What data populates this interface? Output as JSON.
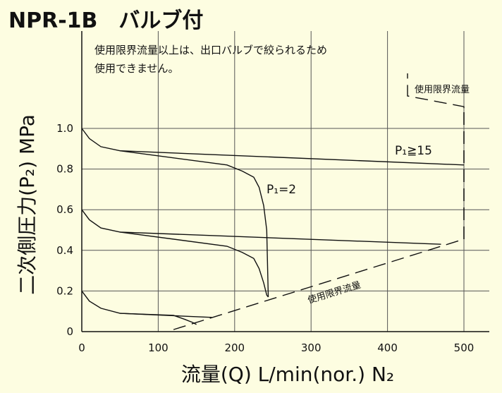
{
  "header": {
    "title": "NPR-1B　バルブ付"
  },
  "note": {
    "line1": "使用限界流量以上は、出口バルブで絞られるため",
    "line2": "使用できません。"
  },
  "chart_data": {
    "type": "line",
    "title": "NPR-1B　バルブ付",
    "xlabel": "流量(Q) L/min(nor.) N₂",
    "ylabel": "二次側圧力(P₂) MPa",
    "xlim": [
      0,
      500
    ],
    "ylim": [
      0,
      1.0
    ],
    "x_ticks": [
      "0",
      "100",
      "200",
      "300",
      "400",
      "500"
    ],
    "y_ticks": [
      "0",
      "0.2",
      "0.4",
      "0.6",
      "0.8",
      "1.0"
    ],
    "grid": true,
    "annotations": {
      "p1_high": "P₁≧15",
      "p1_low": "P₁=2",
      "limit_top": "使用限界流量",
      "limit_diag": "使用限界流量"
    },
    "series": [
      {
        "x": [
          0,
          10,
          25,
          50,
          500
        ],
        "y": [
          1.0,
          0.95,
          0.91,
          0.89,
          0.82
        ]
      },
      {
        "x": [
          50,
          190,
          210,
          225,
          232,
          238,
          242,
          244
        ],
        "y": [
          0.89,
          0.82,
          0.79,
          0.76,
          0.71,
          0.62,
          0.5,
          0.17
        ]
      },
      {
        "x": [
          0,
          10,
          25,
          50,
          470
        ],
        "y": [
          0.6,
          0.55,
          0.51,
          0.49,
          0.43
        ]
      },
      {
        "x": [
          50,
          190,
          210,
          225,
          232,
          238,
          242,
          244
        ],
        "y": [
          0.49,
          0.42,
          0.39,
          0.36,
          0.31,
          0.24,
          0.18,
          0.17
        ]
      },
      {
        "x": [
          0,
          10,
          25,
          50,
          170
        ],
        "y": [
          0.2,
          0.15,
          0.115,
          0.09,
          0.07
        ]
      },
      {
        "x": [
          50,
          120,
          135,
          145,
          150
        ],
        "y": [
          0.09,
          0.08,
          0.06,
          0.045,
          0.035
        ]
      }
    ],
    "limit_line": {
      "x": [
        120,
        500,
        500,
        500
      ],
      "y": [
        0.01,
        0.455,
        1.1,
        1.22
      ]
    }
  }
}
